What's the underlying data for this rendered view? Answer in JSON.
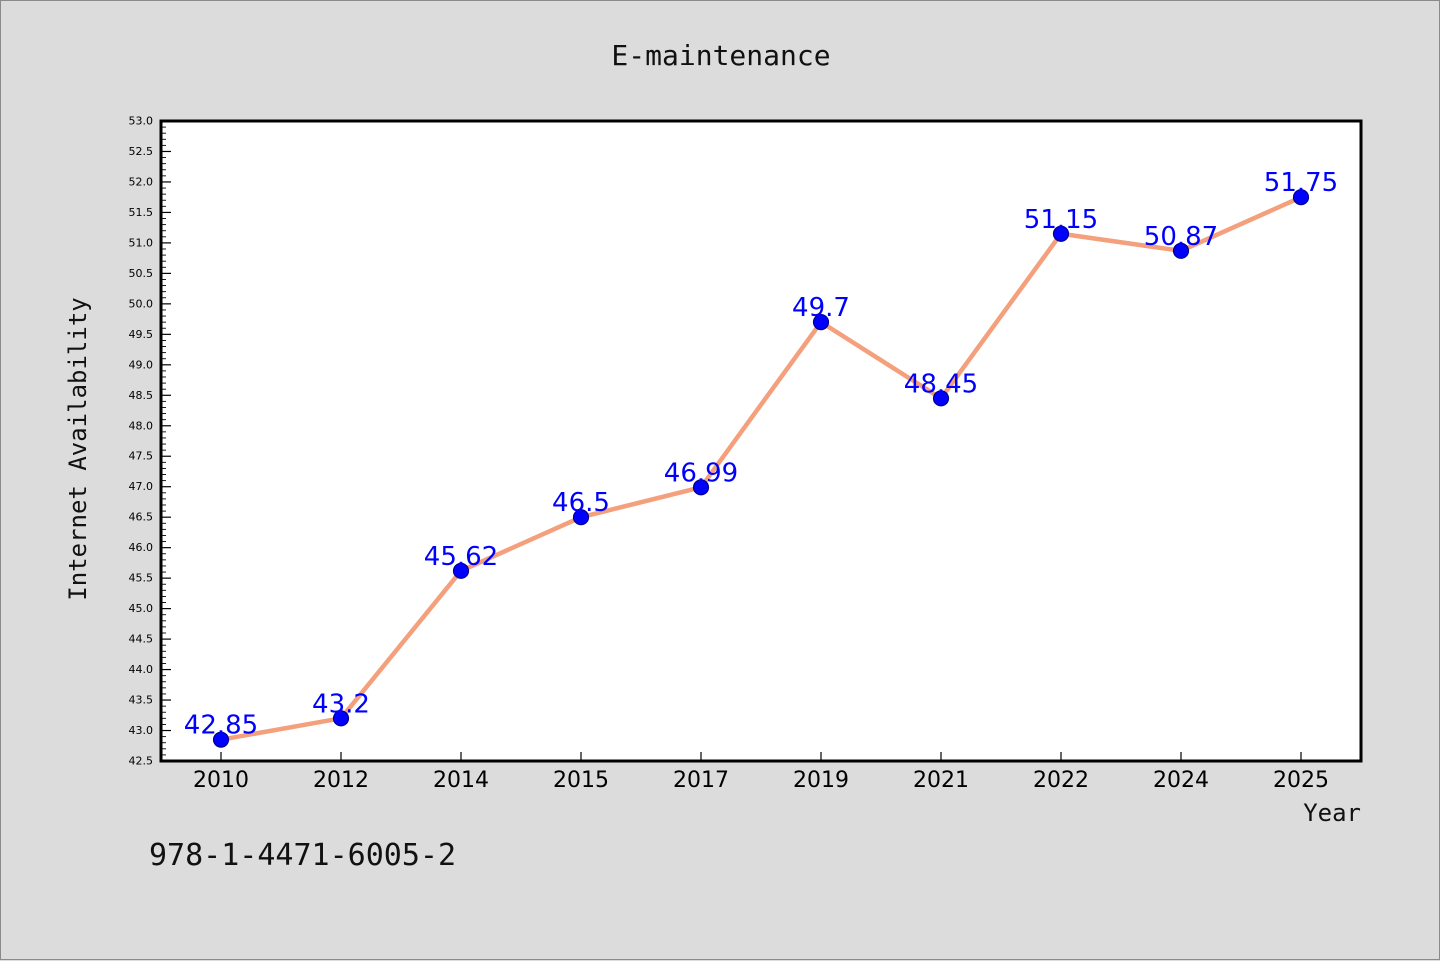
{
  "chart_data": {
    "type": "line",
    "title": "E-maintenance",
    "xlabel": "Year",
    "ylabel": "Internet Availability",
    "footnote": "978-1-4471-6005-2",
    "categories": [
      "2010",
      "2012",
      "2014",
      "2015",
      "2017",
      "2019",
      "2021",
      "2022",
      "2024",
      "2025"
    ],
    "values": [
      42.85,
      43.2,
      45.62,
      46.5,
      46.99,
      49.7,
      48.45,
      51.15,
      50.87,
      51.75
    ],
    "data_labels": [
      "42.85",
      "43.2",
      "45.62",
      "46.5",
      "46.99",
      "49.7",
      "48.45",
      "51.15",
      "50.87",
      "51.75"
    ],
    "ylim": [
      42.5,
      53.0
    ],
    "yticks": [
      "42.5",
      "43.0",
      "43.5",
      "44.0",
      "44.5",
      "45.0",
      "45.5",
      "46.0",
      "46.5",
      "47.0",
      "47.5",
      "48.0",
      "48.5",
      "49.0",
      "49.5",
      "50.0",
      "50.5",
      "51.0",
      "51.5",
      "52.0",
      "52.5",
      "53.0"
    ],
    "grid": false,
    "colors": {
      "line": "#f4a07c",
      "marker": "#0000ff",
      "marker_edge": "#00008b",
      "data_label": "#0000ff",
      "background": "#dcdcdc",
      "plot_background": "#ffffff"
    }
  }
}
